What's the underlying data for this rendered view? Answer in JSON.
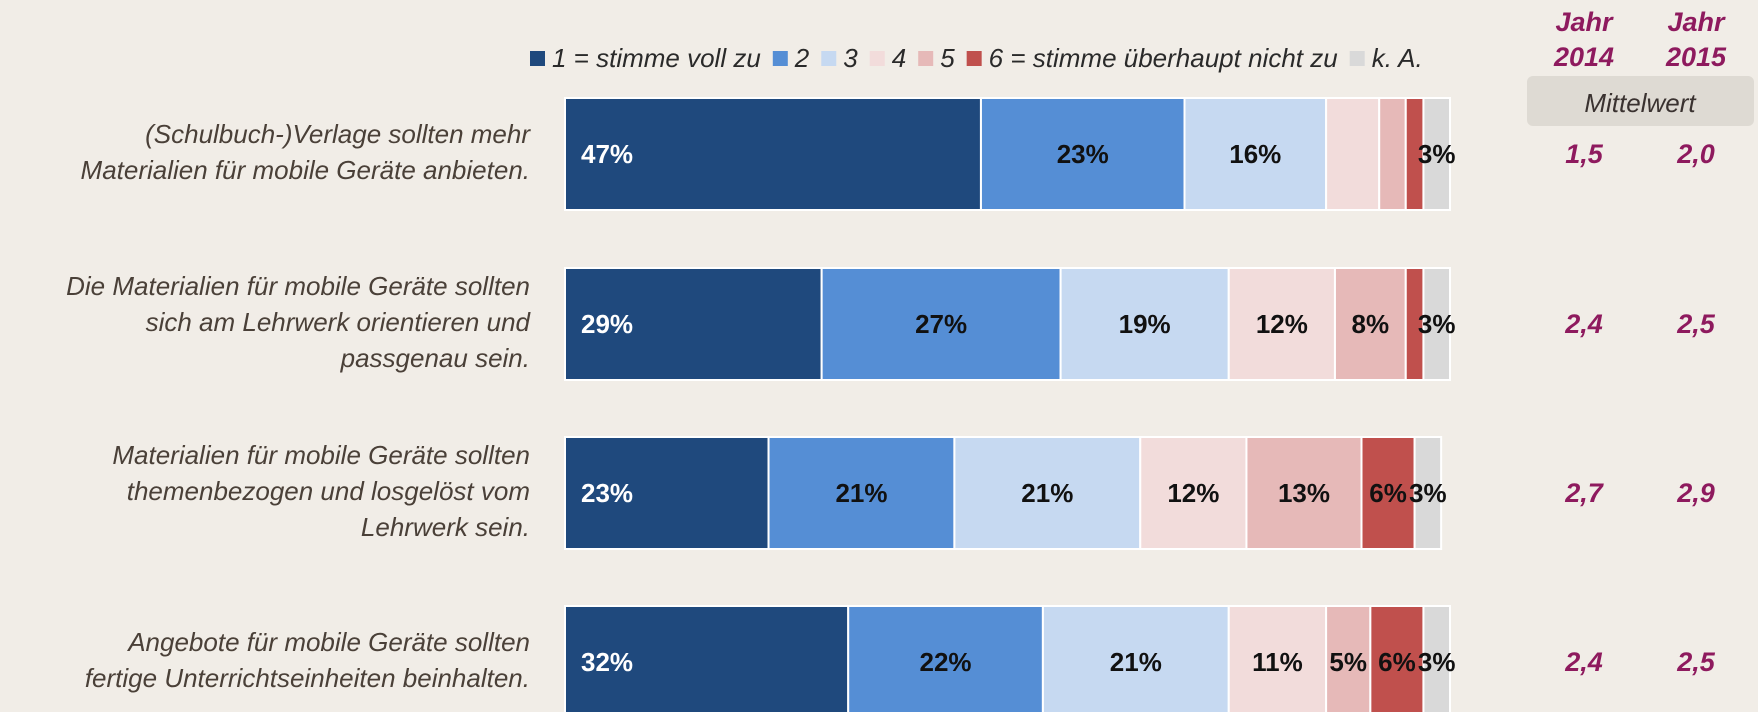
{
  "chart_data": {
    "type": "stacked_bar_horizontal",
    "categories": [
      "(Schulbuch-)Verlage sollten mehr\nMaterialien für mobile Geräte anbieten.",
      "Die Materialien für mobile Geräte sollten\nsich am Lehrwerk orientieren und\npassgenau sein.",
      "Materialien für mobile Geräte sollten\nthemenbezogen und losgelöst vom\nLehrwerk sein.",
      "Angebote für mobile Geräte sollten\nfertige Unterrichtseinheiten beinhalten."
    ],
    "xlim": [
      0,
      100
    ],
    "series": [
      {
        "name": "1 = stimme voll zu",
        "color": "#1f497d",
        "values": [
          47,
          29,
          23,
          32
        ],
        "value_labels": [
          "47%",
          "29%",
          "23%",
          "32%"
        ]
      },
      {
        "name": "2",
        "color": "#558ed5",
        "values": [
          23,
          27,
          21,
          22
        ],
        "value_labels": [
          "23%",
          "27%",
          "21%",
          "22%"
        ]
      },
      {
        "name": "3",
        "color": "#c6d9f1",
        "values": [
          16,
          19,
          21,
          21
        ],
        "value_labels": [
          "16%",
          "19%",
          "21%",
          "21%"
        ]
      },
      {
        "name": "4",
        "color": "#f2dcdb",
        "values": [
          6,
          12,
          12,
          11
        ],
        "value_labels": [
          null,
          "12%",
          "12%",
          "11%"
        ]
      },
      {
        "name": "5",
        "color": "#e6b9b8",
        "values": [
          3,
          8,
          13,
          5
        ],
        "value_labels": [
          null,
          "8%",
          "13%",
          "5%"
        ]
      },
      {
        "name": "6 = stimme überhaupt nicht zu",
        "color": "#c0504d",
        "values": [
          2,
          2,
          6,
          6
        ],
        "value_labels": [
          null,
          null,
          "6%",
          "6%"
        ]
      },
      {
        "name": "k. A.",
        "color": "#d9d9d9",
        "values": [
          3,
          3,
          3,
          3
        ],
        "value_labels": [
          "3%",
          "3%",
          "3%",
          "3%"
        ]
      }
    ],
    "mean_header": "Mittelwert",
    "year_headers": [
      "Jahr 2014",
      "Jahr 2015"
    ],
    "means": [
      [
        "1,5",
        "2,4",
        "2,7",
        "2,4"
      ],
      [
        "2,0",
        "2,5",
        "2,9",
        "2,5"
      ]
    ]
  }
}
